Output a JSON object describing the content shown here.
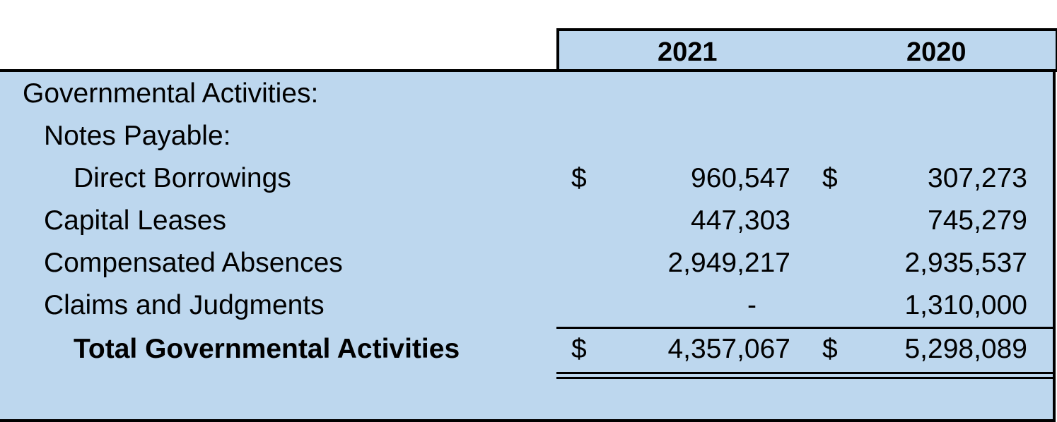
{
  "header": {
    "col_2021": "2021",
    "col_2020": "2020"
  },
  "rows": [
    {
      "label": "Governmental Activities:",
      "dollar_2021": "",
      "val_2021": "",
      "dollar_2020": "",
      "val_2020": ""
    },
    {
      "label": "Notes Payable:",
      "dollar_2021": "",
      "val_2021": "",
      "dollar_2020": "",
      "val_2020": ""
    },
    {
      "label": "Direct Borrowings",
      "dollar_2021": "$",
      "val_2021": "960,547",
      "dollar_2020": "$",
      "val_2020": "307,273"
    },
    {
      "label": "Capital Leases",
      "dollar_2021": "",
      "val_2021": "447,303",
      "dollar_2020": "",
      "val_2020": "745,279"
    },
    {
      "label": "Compensated Absences",
      "dollar_2021": "",
      "val_2021": "2,949,217",
      "dollar_2020": "",
      "val_2020": "2,935,537"
    },
    {
      "label": "Claims and Judgments",
      "dollar_2021": "",
      "val_2021": "-",
      "dollar_2020": "",
      "val_2020": "1,310,000"
    },
    {
      "label": "Total Governmental Activities",
      "dollar_2021": "$",
      "val_2021": "4,357,067",
      "dollar_2020": "$",
      "val_2020": "5,298,089"
    }
  ]
}
